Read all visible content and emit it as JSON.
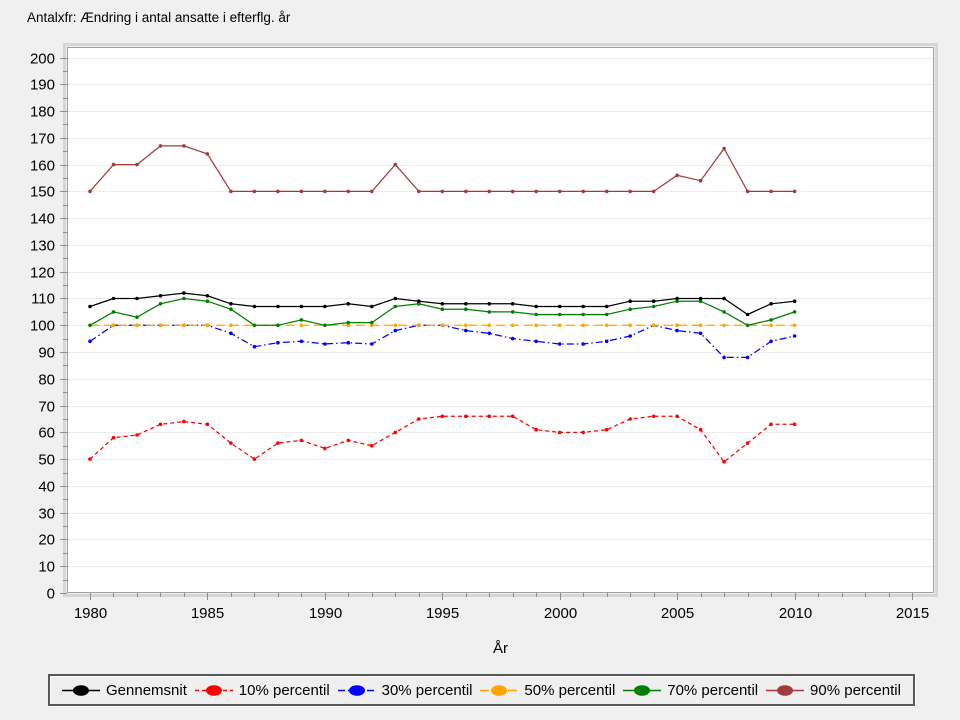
{
  "title": "Antalxfr: Ændring i antal ansatte i efterflg. år",
  "chart_data": {
    "type": "line",
    "title": "Antalxfr: Ændring i antal ansatte i efterflg. år",
    "xlabel": "År",
    "ylabel": "",
    "ylim": [
      0,
      200
    ],
    "ytick_step": 10,
    "yminor_step": 5,
    "xticks": [
      1980,
      1985,
      1990,
      1995,
      2000,
      2005,
      2010,
      2015
    ],
    "xminor_step": 1,
    "grid": true,
    "legend_position": "bottom",
    "x": [
      1980,
      1981,
      1982,
      1983,
      1984,
      1985,
      1986,
      1987,
      1988,
      1989,
      1990,
      1991,
      1992,
      1993,
      1994,
      1995,
      1996,
      1997,
      1998,
      1999,
      2000,
      2001,
      2002,
      2003,
      2004,
      2005,
      2006,
      2007,
      2008,
      2009,
      2010
    ],
    "series": [
      {
        "name": "Gennemsnit",
        "color": "#000000",
        "style": "solid",
        "values": [
          107,
          110,
          110,
          111,
          112,
          111,
          108,
          107,
          107,
          107,
          107,
          108,
          107,
          110,
          109,
          108,
          108,
          108,
          108,
          107,
          107,
          107,
          107,
          109,
          109,
          110,
          110,
          110,
          104,
          108,
          109
        ]
      },
      {
        "name": "10% percentil",
        "color": "#ff0000",
        "style": "dashed",
        "values": [
          50,
          58,
          59,
          63,
          64,
          63,
          56,
          50,
          56,
          57,
          54,
          57,
          55,
          60,
          65,
          66,
          66,
          66,
          66,
          61,
          60,
          60,
          61,
          65,
          66,
          66,
          61,
          49,
          56,
          63,
          63
        ]
      },
      {
        "name": "30% percentil",
        "color": "#0000ff",
        "style": "dashdot",
        "values": [
          94,
          100,
          100,
          100,
          100,
          100,
          97,
          92,
          93.5,
          94,
          93,
          93.5,
          93,
          98,
          100,
          100,
          98,
          97,
          95,
          94,
          93,
          93,
          94,
          96,
          100,
          98,
          97,
          88,
          88,
          94,
          96
        ]
      },
      {
        "name": "50% percentil",
        "color": "#ffa500",
        "style": "longdash",
        "values": [
          100,
          100,
          100,
          100,
          100,
          100,
          100,
          100,
          100,
          100,
          100,
          100,
          100,
          100,
          100,
          100,
          100,
          100,
          100,
          100,
          100,
          100,
          100,
          100,
          100,
          100,
          100,
          100,
          100,
          100,
          100
        ]
      },
      {
        "name": "70% percentil",
        "color": "#008000",
        "style": "solid",
        "values": [
          100,
          105,
          103,
          108,
          110,
          109,
          106,
          100,
          100,
          102,
          100,
          101,
          101,
          107,
          108,
          106,
          106,
          105,
          105,
          104,
          104,
          104,
          104,
          106,
          107,
          109,
          109,
          105,
          100,
          102,
          105
        ]
      },
      {
        "name": "90% percentil",
        "color": "#a33b3b",
        "style": "solid",
        "values": [
          150,
          160,
          160,
          167,
          167,
          164,
          150,
          150,
          150,
          150,
          150,
          150,
          150,
          160,
          150,
          150,
          150,
          150,
          150,
          150,
          150,
          150,
          150,
          150,
          150,
          156,
          154,
          166,
          150,
          150,
          150
        ]
      }
    ]
  }
}
